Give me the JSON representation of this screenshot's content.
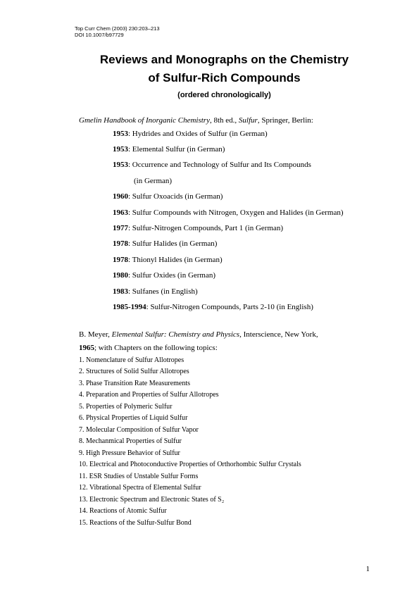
{
  "meta": {
    "line1": "Top Curr Chem (2003) 230:203–213",
    "line2": "DOI 10.1007/b97729"
  },
  "title": {
    "line1": "Reviews and Monographs on the Chemistry",
    "line2": "of Sulfur-Rich Compounds"
  },
  "subtitle": "(ordered chronologically)",
  "gmelin": {
    "intro_italic": "Gmelin Handbook of Inorganic Chemistry",
    "intro_rest1": ", 8th ed., ",
    "intro_italic2": "Sulfur",
    "intro_rest2": ", Springer, Berlin:",
    "entries": [
      {
        "year": "1953",
        "text": ": Hydrides and Oxides of Sulfur (in German)"
      },
      {
        "year": "1953",
        "text": ": Elemental Sulfur (in German)"
      },
      {
        "year": "1953",
        "text": ": Occurrence and Technology of Sulfur and Its Compounds",
        "cont": "(in German)"
      },
      {
        "year": "1960",
        "text": ": Sulfur Oxoacids (in German)"
      },
      {
        "year": "1963",
        "text": ": Sulfur Compounds with Nitrogen, Oxygen and Halides (in German)"
      },
      {
        "year": "1977",
        "text": ": Sulfur-Nitrogen Compounds, Part 1 (in German)"
      },
      {
        "year": "1978",
        "text": ": Sulfur Halides (in German)"
      },
      {
        "year": "1978",
        "text": ": Thionyl Halides (in German)"
      },
      {
        "year": "1980",
        "text": ": Sulfur Oxides (in German)"
      },
      {
        "year": "1983",
        "text": ": Sulfanes (in English)"
      },
      {
        "year": "1985-1994",
        "text": ": Sulfur-Nitrogen Compounds, Parts 2-10 (in English)"
      }
    ]
  },
  "meyer": {
    "author": "B. Meyer, ",
    "title_italic": "Elemental Sulfur: Chemistry and Physics",
    "pub": ", Interscience, New York, ",
    "year": "1965",
    "tail": "; with Chapters on the following topics:",
    "chapters": [
      "1. Nomenclature of Sulfur Allotropes",
      "2. Structures of Solid Sulfur Allotropes",
      "3. Phase Transition Rate Measurements",
      "4. Preparation and Properties of Sulfur Allotropes",
      "5. Properties of Polymeric Sulfur",
      "6. Physical Properties of Liquid Sulfur",
      "7. Molecular Composition of Sulfur Vapor",
      "8. Mechanmical Properties of Sulfur",
      "9. High Pressure Behavior of Sulfur",
      "10. Electrical and Photoconductive Properties of Orthorhombic Sulfur Crystals",
      "11. ESR Studies of Unstable Sulfur Forms",
      "12. Vibrational Spectra of Elemental Sulfur",
      "13. Electronic Spectrum and Electronic States of S₂",
      "14. Reactions of Atomic Sulfur",
      "15. Reactions of the Sulfur-Sulfur Bond"
    ]
  },
  "page_number": "1"
}
